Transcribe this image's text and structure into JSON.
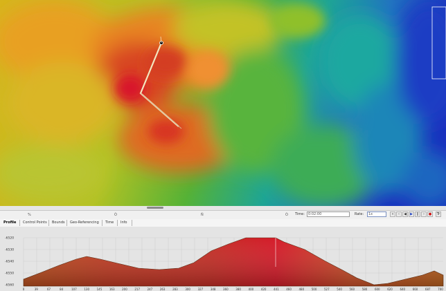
{
  "map": {
    "description_colors": [
      "#1b2ec8",
      "#1e9a92",
      "#2faa3a",
      "#b6c21c",
      "#e88a18",
      "#d22a20"
    ]
  },
  "timeline": {
    "ticks": [
      "%",
      "Ò",
      "Ñ",
      "Ò"
    ],
    "time_label": "Time:",
    "time_value": "0:02:00",
    "rate_label": "Rate:",
    "rate_value": "1x"
  },
  "tabs": [
    "Profile",
    "Control Points",
    "Bounds",
    "Geo-Referencing",
    "Time",
    "Info"
  ],
  "profile": {
    "y_ticks": [
      "-6520",
      "-6530",
      "-6540",
      "-6550",
      "-6560"
    ],
    "x_ticks": [
      "0",
      "39",
      "67",
      "84",
      "107",
      "130",
      "145",
      "163",
      "200",
      "217",
      "247",
      "263",
      "283",
      "300",
      "327",
      "348",
      "360",
      "380",
      "400",
      "420",
      "441",
      "460",
      "480",
      "500",
      "527",
      "540",
      "560",
      "580",
      "600",
      "620",
      "640",
      "660",
      "687",
      "700"
    ],
    "colors": {
      "low": "#c05020",
      "high": "#d81e28",
      "background": "#e4e4e4"
    }
  }
}
